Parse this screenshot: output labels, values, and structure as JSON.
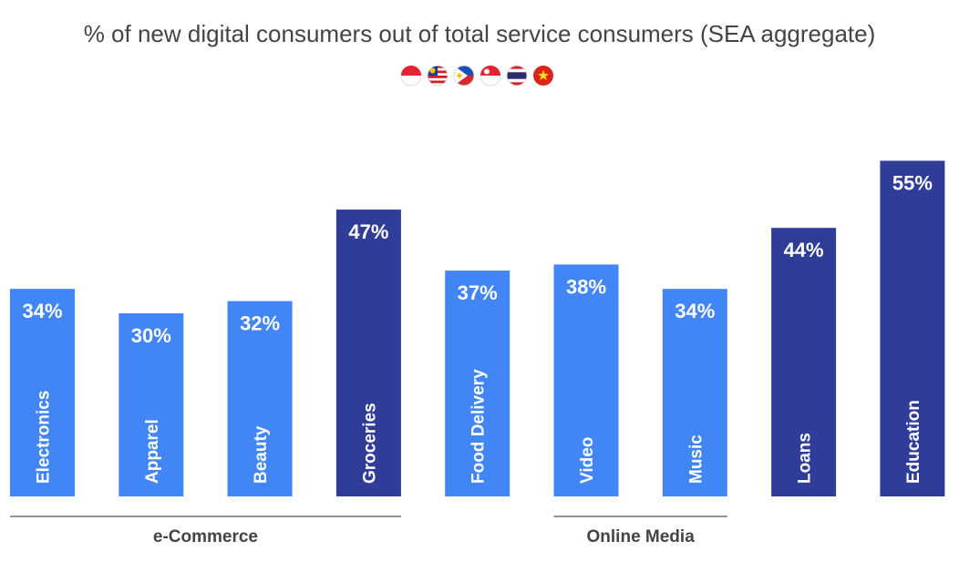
{
  "chart_data": {
    "type": "bar",
    "title": "% of new digital consumers out of total service consumers (SEA aggregate)",
    "categories": [
      "Electronics",
      "Apparel",
      "Beauty",
      "Groceries",
      "Food Delivery",
      "Video",
      "Music",
      "Loans",
      "Education"
    ],
    "values": [
      34,
      30,
      32,
      47,
      37,
      38,
      34,
      44,
      55
    ],
    "value_labels": [
      "34%",
      "30%",
      "32%",
      "47%",
      "37%",
      "38%",
      "34%",
      "44%",
      "55%"
    ],
    "highlighted": [
      false,
      false,
      false,
      true,
      false,
      false,
      false,
      true,
      true
    ],
    "groups": [
      {
        "label": "e-Commerce",
        "from": 0,
        "to": 3
      },
      {
        "label": "Online Media",
        "from": 5,
        "to": 6
      }
    ],
    "ylim": [
      0,
      60
    ],
    "xlabel": "",
    "ylabel": "",
    "grid": false,
    "legend": "none"
  },
  "flags": [
    "indonesia-flag-icon",
    "malaysia-flag-icon",
    "philippines-flag-icon",
    "singapore-flag-icon",
    "thailand-flag-icon",
    "vietnam-flag-icon"
  ],
  "colors": {
    "bar": "#4285f4",
    "bar_highlight": "#2f3d99",
    "title": "#444444",
    "label_text": "#ffffff",
    "group_text": "#444444",
    "group_line": "#555555"
  }
}
